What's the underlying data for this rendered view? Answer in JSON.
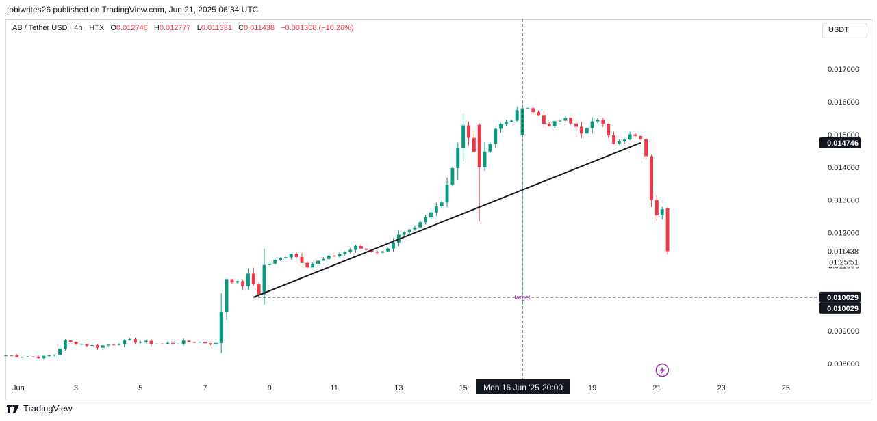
{
  "header": {
    "author_line": "tobiwrites26 published on TradingView.com, Jun 21, 2025 06:34 UTC"
  },
  "legend": {
    "symbol": "AB / Tether USD · 4h · HTX",
    "o_label": "O",
    "o_value": "0.012746",
    "h_label": "H",
    "h_value": "0.012777",
    "l_label": "L",
    "l_value": "0.011331",
    "c_label": "C",
    "c_value": "0.011438",
    "change": "−0.001308 (−10.26%)"
  },
  "currency": "USDT",
  "footer": {
    "brand": "TradingView"
  },
  "colors": {
    "up": "#089981",
    "down": "#f23645",
    "text": "#131722",
    "accent": "#9c27b0"
  },
  "chart_data": {
    "type": "candlestick",
    "interval": "4h",
    "ylim": [
      0.0075,
      0.0179
    ],
    "x_range": [
      "2025-05-31T20:00",
      "2025-06-26T00:00"
    ],
    "y_ticks": [
      "0.008000",
      "0.009000",
      "0.011000",
      "0.012000",
      "0.013000",
      "0.014000",
      "0.015000",
      "0.016000",
      "0.017000"
    ],
    "x_ticks": [
      {
        "t": "2025-06-01T00:00",
        "label": "Jun"
      },
      {
        "t": "2025-06-03T00:00",
        "label": "3"
      },
      {
        "t": "2025-06-05T00:00",
        "label": "5"
      },
      {
        "t": "2025-06-07T00:00",
        "label": "7"
      },
      {
        "t": "2025-06-09T00:00",
        "label": "9"
      },
      {
        "t": "2025-06-11T00:00",
        "label": "11"
      },
      {
        "t": "2025-06-13T00:00",
        "label": "13"
      },
      {
        "t": "2025-06-15T00:00",
        "label": "15"
      },
      {
        "t": "2025-06-19T00:00",
        "label": "19"
      },
      {
        "t": "2025-06-21T00:00",
        "label": "21"
      },
      {
        "t": "2025-06-23T00:00",
        "label": "23"
      },
      {
        "t": "2025-06-25T00:00",
        "label": "25"
      }
    ],
    "keyframes": [
      {
        "t": "2025-05-31T20:00",
        "p": 0.00825
      },
      {
        "t": "2025-06-02T00:00",
        "p": 0.0082
      },
      {
        "t": "2025-06-02T08:00",
        "p": 0.00828
      },
      {
        "t": "2025-06-02T16:00",
        "p": 0.00868
      },
      {
        "t": "2025-06-03T16:00",
        "p": 0.00852
      },
      {
        "t": "2025-06-04T16:00",
        "p": 0.0087
      },
      {
        "t": "2025-06-05T16:00",
        "p": 0.0086
      },
      {
        "t": "2025-06-06T16:00",
        "p": 0.00868
      },
      {
        "t": "2025-06-07T08:00",
        "p": 0.0086
      },
      {
        "t": "2025-06-07T12:00",
        "p": 0.0096
      },
      {
        "t": "2025-06-07T16:00",
        "p": 0.0106
      },
      {
        "t": "2025-06-08T04:00",
        "p": 0.0104
      },
      {
        "t": "2025-06-08T08:00",
        "p": 0.0107
      },
      {
        "t": "2025-06-08T16:00",
        "p": 0.01015
      },
      {
        "t": "2025-06-08T20:00",
        "p": 0.011
      },
      {
        "t": "2025-06-09T08:00",
        "p": 0.0112
      },
      {
        "t": "2025-06-09T16:00",
        "p": 0.0114
      },
      {
        "t": "2025-06-10T04:00",
        "p": 0.011
      },
      {
        "t": "2025-06-11T00:00",
        "p": 0.0113
      },
      {
        "t": "2025-06-11T16:00",
        "p": 0.01155
      },
      {
        "t": "2025-06-12T12:00",
        "p": 0.0114
      },
      {
        "t": "2025-06-13T00:00",
        "p": 0.0119
      },
      {
        "t": "2025-06-13T12:00",
        "p": 0.0121
      },
      {
        "t": "2025-06-14T00:00",
        "p": 0.0126
      },
      {
        "t": "2025-06-14T08:00",
        "p": 0.013
      },
      {
        "t": "2025-06-14T16:00",
        "p": 0.014
      },
      {
        "t": "2025-06-15T00:00",
        "p": 0.0153
      },
      {
        "t": "2025-06-15T12:00",
        "p": 0.014
      },
      {
        "t": "2025-06-16T00:00",
        "p": 0.0152
      },
      {
        "t": "2025-06-16T12:00",
        "p": 0.0155
      },
      {
        "t": "2025-06-16T20:00",
        "p": 0.0158
      },
      {
        "t": "2025-06-17T08:00",
        "p": 0.0156
      },
      {
        "t": "2025-06-17T16:00",
        "p": 0.0152
      },
      {
        "t": "2025-06-18T04:00",
        "p": 0.0156
      },
      {
        "t": "2025-06-18T16:00",
        "p": 0.015
      },
      {
        "t": "2025-06-19T04:00",
        "p": 0.0155
      },
      {
        "t": "2025-06-19T16:00",
        "p": 0.0148
      },
      {
        "t": "2025-06-20T04:00",
        "p": 0.015
      },
      {
        "t": "2025-06-20T12:00",
        "p": 0.0148
      },
      {
        "t": "2025-06-20T16:00",
        "p": 0.0144
      },
      {
        "t": "2025-06-20T20:00",
        "p": 0.013
      },
      {
        "t": "2025-06-21T00:00",
        "p": 0.0126
      },
      {
        "t": "2025-06-21T04:00",
        "p": 0.01275
      },
      {
        "t": "2025-06-21T08:00",
        "p": 0.01144
      }
    ],
    "special_candles": [
      {
        "t": "2025-06-15T12:00",
        "o": 0.0153,
        "h": 0.01535,
        "l": 0.01235,
        "c": 0.014
      },
      {
        "t": "2025-06-16T20:00",
        "o": 0.015,
        "h": 0.01598,
        "l": 0.00978,
        "c": 0.0158
      },
      {
        "t": "2025-06-21T08:00",
        "o": 0.012746,
        "h": 0.012777,
        "l": 0.011331,
        "c": 0.011438
      }
    ],
    "trendline": {
      "from": {
        "t": "2025-06-08T12:00",
        "p": 0.010029
      },
      "to": {
        "t": "2025-06-20T12:00",
        "p": 0.01475
      }
    },
    "target_line": {
      "from": "2025-06-08T12:00",
      "value": 0.010029,
      "label": "target"
    },
    "crosshair": {
      "t": "2025-06-16T20:00",
      "time_label": "Mon 16 Jun '25",
      "time_label_2": "20:00"
    },
    "price_labels": [
      {
        "value": 0.014746,
        "text": "0.014746",
        "style": "dark"
      },
      {
        "value": 0.011438,
        "text": "0.011438",
        "style": "plain"
      },
      {
        "value": 0.011438,
        "text": "01:25:51",
        "style": "plain-sub"
      },
      {
        "value": 0.010029,
        "text": "0.010029",
        "style": "dark"
      },
      {
        "value": 0.010029,
        "text": "0.010029",
        "style": "dark-sub"
      }
    ],
    "event_marker": {
      "t": "2025-06-21T00:00",
      "value": 0.0078,
      "icon": "lightning-icon"
    }
  }
}
